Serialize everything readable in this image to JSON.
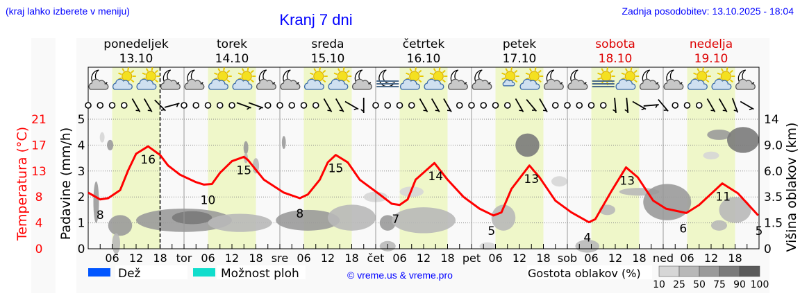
{
  "header": {
    "hint": "(kraj lahko izberete v meniju)",
    "title": "Kranj 7 dni",
    "updated": "Zadnja posodobitev: 13.10.2025 - 18:04"
  },
  "legend": {
    "rain": "Dež",
    "showers": "Možnost ploh",
    "copyright": "© vreme.us & vreme.pro",
    "cloud_density": "Gostota oblakov (%)",
    "density_ticks": [
      "10",
      "25",
      "50",
      "75",
      "90",
      "100"
    ]
  },
  "colors": {
    "temp": "#ff0000",
    "rain": "#0055ff",
    "showers": "#11ddcc",
    "weekend": "#dd0000",
    "day_band": "#eff7c9",
    "density": [
      "#d6d6d6",
      "#b8b8b8",
      "#9a9a9a",
      "#7a7a7a",
      "#5a5a5a"
    ]
  },
  "chart_data": {
    "type": "line",
    "title": "Kranj 7 dni",
    "ylabel_left_temp": "Temperatura (°C)",
    "ylabel_left_precip": "Padavine (mm/h)",
    "ylabel_right": "Višina oblakov (km)",
    "temp_ticks": [
      "0",
      "4",
      "8",
      "13",
      "17",
      "21"
    ],
    "precip_ticks": [
      "0",
      "1",
      "2",
      "3",
      "4",
      "5"
    ],
    "cloud_height_ticks": [
      "0",
      "1.5",
      "3.5",
      "6.0",
      "9.0",
      "14"
    ],
    "temp_range": [
      0,
      21
    ],
    "precip_range": [
      0,
      5
    ],
    "days": [
      {
        "name": "ponedeljek",
        "date": "13.10",
        "abbr": "",
        "weekend": false
      },
      {
        "name": "torek",
        "date": "14.10",
        "abbr": "tor",
        "weekend": false
      },
      {
        "name": "sreda",
        "date": "15.10",
        "abbr": "sre",
        "weekend": false
      },
      {
        "name": "četrtek",
        "date": "16.10",
        "abbr": "čet",
        "weekend": false
      },
      {
        "name": "petek",
        "date": "17.10",
        "abbr": "pet",
        "weekend": false
      },
      {
        "name": "sobota",
        "date": "18.10",
        "abbr": "sob",
        "weekend": true
      },
      {
        "name": "nedelja",
        "date": "19.10",
        "abbr": "ned",
        "weekend": true
      }
    ],
    "hour_labels": [
      "06",
      "12",
      "18"
    ],
    "now_hour": 18,
    "temperature": [
      [
        0,
        9.1
      ],
      [
        3,
        8.0
      ],
      [
        5,
        8.2
      ],
      [
        8,
        9.5
      ],
      [
        10,
        12.7
      ],
      [
        12,
        15.4
      ],
      [
        15,
        16.6
      ],
      [
        18,
        15.2
      ],
      [
        20,
        13.5
      ],
      [
        23,
        12.0
      ],
      [
        27,
        10.8
      ],
      [
        29,
        10.4
      ],
      [
        31,
        10.5
      ],
      [
        33,
        12.3
      ],
      [
        36,
        14.2
      ],
      [
        39,
        14.9
      ],
      [
        40,
        14.4
      ],
      [
        44,
        11.2
      ],
      [
        49,
        9.1
      ],
      [
        53,
        8.2
      ],
      [
        55,
        8.8
      ],
      [
        58,
        11.2
      ],
      [
        60,
        14.0
      ],
      [
        62,
        15.2
      ],
      [
        65,
        14.0
      ],
      [
        68,
        11.2
      ],
      [
        73,
        8.8
      ],
      [
        76,
        7.3
      ],
      [
        78,
        7.1
      ],
      [
        80,
        8.0
      ],
      [
        82,
        11.2
      ],
      [
        86.7,
        13.9
      ],
      [
        90,
        11.2
      ],
      [
        94,
        8.4
      ],
      [
        98,
        6.5
      ],
      [
        101.5,
        5.4
      ],
      [
        103.5,
        5.9
      ],
      [
        106,
        9.7
      ],
      [
        110.5,
        13.5
      ],
      [
        113,
        11.6
      ],
      [
        117,
        7.8
      ],
      [
        121,
        5.9
      ],
      [
        125.4,
        4.3
      ],
      [
        127,
        4.8
      ],
      [
        131,
        9.3
      ],
      [
        134.7,
        13.2
      ],
      [
        137.6,
        11.6
      ],
      [
        141.5,
        7.8
      ],
      [
        144.7,
        6.5
      ],
      [
        149.8,
        5.8
      ],
      [
        153,
        7.1
      ],
      [
        158.8,
        10.6
      ],
      [
        162.7,
        9.0
      ],
      [
        167.8,
        5.4
      ]
    ],
    "temp_labels": [
      {
        "h": 3,
        "t": "8",
        "pos": "below"
      },
      {
        "h": 15,
        "t": "16",
        "pos": "below"
      },
      {
        "h": 30,
        "t": "10",
        "pos": "below"
      },
      {
        "h": 39,
        "t": "15",
        "pos": "below"
      },
      {
        "h": 53,
        "t": "8",
        "pos": "below"
      },
      {
        "h": 62,
        "t": "15",
        "pos": "below"
      },
      {
        "h": 77,
        "t": "7",
        "pos": "below"
      },
      {
        "h": 87,
        "t": "14",
        "pos": "below"
      },
      {
        "h": 101,
        "t": "5",
        "pos": "below"
      },
      {
        "h": 111,
        "t": "13",
        "pos": "below"
      },
      {
        "h": 125,
        "t": "4",
        "pos": "below"
      },
      {
        "h": 135,
        "t": "13",
        "pos": "below"
      },
      {
        "h": 149,
        "t": "6",
        "pos": "below"
      },
      {
        "h": 159,
        "t": "11",
        "pos": "below"
      },
      {
        "h": 168,
        "t": "5",
        "pos": "below"
      }
    ],
    "clouds": [
      {
        "h": 2,
        "l": 1.8,
        "rw": 0.7,
        "rh": 0.8,
        "d": 3
      },
      {
        "h": 8,
        "l": 0.9,
        "rw": 3,
        "rh": 0.4,
        "d": 3
      },
      {
        "h": 7,
        "l": 0.2,
        "rw": 1,
        "rh": 0.4,
        "d": 2
      },
      {
        "h": 5.5,
        "l": 4,
        "rw": 0.8,
        "rh": 0.2,
        "d": 3
      },
      {
        "h": 3.5,
        "l": 4.3,
        "rw": 0.6,
        "rh": 0.2,
        "d": 1
      },
      {
        "h": 24,
        "l": 1.1,
        "rw": 12,
        "rh": 0.45,
        "d": 3
      },
      {
        "h": 26,
        "l": 1.2,
        "rw": 5,
        "rh": 0.25,
        "d": 4
      },
      {
        "h": 38,
        "l": 1,
        "rw": 8,
        "rh": 0.35,
        "d": 2
      },
      {
        "h": 39.5,
        "l": 3.9,
        "rw": 0.6,
        "rh": 0.25,
        "d": 3
      },
      {
        "h": 39.5,
        "l": 3.5,
        "rw": 0.5,
        "rh": 0.2,
        "d": 2
      },
      {
        "h": 42,
        "l": 3.2,
        "rw": 0.8,
        "rh": 0.3,
        "d": 2
      },
      {
        "h": 55,
        "l": 1.1,
        "rw": 8,
        "rh": 0.4,
        "d": 3
      },
      {
        "h": 49,
        "l": 4.1,
        "rw": 0.5,
        "rh": 0.25,
        "d": 3
      },
      {
        "h": 66,
        "l": 1.2,
        "rw": 6,
        "rh": 0.5,
        "d": 2
      },
      {
        "h": 72,
        "l": 2,
        "rw": 3,
        "rh": 0.2,
        "d": 1
      },
      {
        "h": 75,
        "l": 1.0,
        "rw": 2,
        "rh": 0.3,
        "d": 3
      },
      {
        "h": 75,
        "l": 0.1,
        "rw": 2,
        "rh": 0.2,
        "d": 2
      },
      {
        "h": 84,
        "l": 1.1,
        "rw": 8,
        "rh": 0.5,
        "d": 2
      },
      {
        "h": 81,
        "l": 2.2,
        "rw": 3,
        "rh": 0.2,
        "d": 1
      },
      {
        "h": 110,
        "l": 4,
        "rw": 3,
        "rh": 0.45,
        "d": 4
      },
      {
        "h": 104,
        "l": 1.2,
        "rw": 3,
        "rh": 0.5,
        "d": 2
      },
      {
        "h": 100,
        "l": 0.1,
        "rw": 2,
        "rh": 0.15,
        "d": 1
      },
      {
        "h": 118,
        "l": 2.6,
        "rw": 2,
        "rh": 0.2,
        "d": 1
      },
      {
        "h": 130,
        "l": 1.5,
        "rw": 2,
        "rh": 0.2,
        "d": 2
      },
      {
        "h": 125,
        "l": 0.1,
        "rw": 3,
        "rh": 0.25,
        "d": 2
      },
      {
        "h": 138,
        "l": 2.2,
        "rw": 5,
        "rh": 0.15,
        "d": 2
      },
      {
        "h": 145,
        "l": 1.8,
        "rw": 6,
        "rh": 0.7,
        "d": 3
      },
      {
        "h": 158,
        "l": 4.4,
        "rw": 3,
        "rh": 0.2,
        "d": 3
      },
      {
        "h": 156,
        "l": 3.6,
        "rw": 2,
        "rh": 0.15,
        "d": 1
      },
      {
        "h": 164,
        "l": 4.2,
        "rw": 4,
        "rh": 0.5,
        "d": 4
      },
      {
        "h": 162,
        "l": 1.5,
        "rw": 4,
        "rh": 0.5,
        "d": 2
      },
      {
        "h": 158,
        "l": 0.9,
        "rw": 2,
        "rh": 0.2,
        "d": 2
      }
    ],
    "weather_icons": [
      "moon-cloud",
      "sun-cloud",
      "sun-cloud",
      "moon-cloud",
      "moon-cloud",
      "sun-cloud",
      "sun-cloud",
      "moon-cloud",
      "moon-cloud",
      "sun-cloud",
      "sun-cloud",
      "moon-cloud",
      "moon-fog",
      "sun-cloud",
      "sun-cloud",
      "moon-cloud",
      "moon-cloud",
      "sun-small-cloud",
      "sun-cloud",
      "moon-cloud",
      "moon-cloud",
      "sun-fog",
      "sun-cloud",
      "moon-cloud",
      "moon-cloud",
      "sun-cloud",
      "sun-cloud",
      "moon-cloud"
    ],
    "wind": [
      "calm",
      "calm",
      "calm",
      "calm",
      330,
      330,
      315,
      255,
      "calm",
      "calm",
      "calm",
      "calm",
      "calm",
      290,
      290,
      "calm",
      "calm",
      "calm",
      "calm",
      "calm",
      330,
      330,
      300,
      0,
      "calm",
      "calm",
      "calm",
      "calm",
      330,
      330,
      330,
      "calm",
      "calm",
      "calm",
      "calm",
      "calm",
      330,
      320,
      330,
      "calm",
      "calm",
      "calm",
      "calm",
      "calm",
      355,
      355,
      300,
      265,
      320,
      "calm",
      "calm",
      "calm",
      330,
      330,
      340,
      300
    ]
  }
}
